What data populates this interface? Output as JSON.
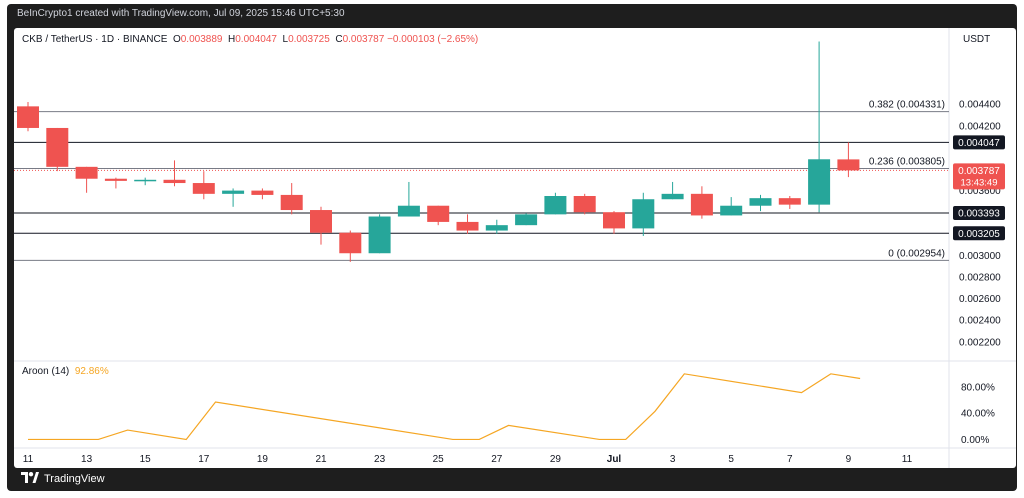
{
  "header": {
    "attribution": "BeInCrypto1 created with TradingView.com, Jul 09, 2025 15:46 UTC+5:30"
  },
  "footer": {
    "brand": "TradingView"
  },
  "colors": {
    "up": "#26a69a",
    "down": "#ef5350",
    "aroon": "#f5a623",
    "fib_line": "#787b86",
    "price_line": "#ef5350",
    "label_dark": "#131722"
  },
  "chart_data": [
    {
      "type": "candlestick",
      "title": "CKB / TetherUS · 1D · BINANCE",
      "ohlc_legend": {
        "symbol": "CKB / TetherUS · 1D · BINANCE",
        "o_label": "O",
        "o": "0.003889",
        "h_label": "H",
        "h": "0.004047",
        "l_label": "L",
        "l": "0.003725",
        "c_label": "C",
        "c": "0.003787",
        "change": "−0.000103 (−2.65%)"
      },
      "currency": "USDT",
      "ylim": [
        0.00205,
        0.00505
      ],
      "y_ticks": [
        "0.004400",
        "0.004200",
        "0.003600",
        "0.003000",
        "0.002800",
        "0.002600",
        "0.002400",
        "0.002200"
      ],
      "x_ticks": [
        "11",
        "13",
        "15",
        "17",
        "19",
        "21",
        "23",
        "25",
        "27",
        "29",
        "Jul",
        "3",
        "5",
        "7",
        "9",
        "11"
      ],
      "candles": [
        {
          "o": 0.00438,
          "h": 0.00442,
          "l": 0.00415,
          "c": 0.00418
        },
        {
          "o": 0.00418,
          "h": 0.00418,
          "l": 0.00378,
          "c": 0.00382
        },
        {
          "o": 0.00382,
          "h": 0.00382,
          "l": 0.00358,
          "c": 0.00371
        },
        {
          "o": 0.00371,
          "h": 0.00372,
          "l": 0.00362,
          "c": 0.00369
        },
        {
          "o": 0.00369,
          "h": 0.00372,
          "l": 0.00365,
          "c": 0.0037
        },
        {
          "o": 0.0037,
          "h": 0.00388,
          "l": 0.00364,
          "c": 0.00367
        },
        {
          "o": 0.00367,
          "h": 0.00378,
          "l": 0.00352,
          "c": 0.00357
        },
        {
          "o": 0.00357,
          "h": 0.00362,
          "l": 0.00345,
          "c": 0.0036
        },
        {
          "o": 0.0036,
          "h": 0.00362,
          "l": 0.00352,
          "c": 0.00356
        },
        {
          "o": 0.00356,
          "h": 0.00367,
          "l": 0.00338,
          "c": 0.00342
        },
        {
          "o": 0.00342,
          "h": 0.00345,
          "l": 0.0031,
          "c": 0.00321
        },
        {
          "o": 0.00321,
          "h": 0.00323,
          "l": 0.00294,
          "c": 0.00302
        },
        {
          "o": 0.00302,
          "h": 0.00338,
          "l": 0.00302,
          "c": 0.00336
        },
        {
          "o": 0.00336,
          "h": 0.00368,
          "l": 0.00336,
          "c": 0.00346
        },
        {
          "o": 0.00346,
          "h": 0.00346,
          "l": 0.00328,
          "c": 0.00331
        },
        {
          "o": 0.00331,
          "h": 0.00338,
          "l": 0.0032,
          "c": 0.00323
        },
        {
          "o": 0.00323,
          "h": 0.00333,
          "l": 0.0032,
          "c": 0.00328
        },
        {
          "o": 0.00328,
          "h": 0.00339,
          "l": 0.00328,
          "c": 0.00338
        },
        {
          "o": 0.00338,
          "h": 0.00358,
          "l": 0.00338,
          "c": 0.00355
        },
        {
          "o": 0.00355,
          "h": 0.00357,
          "l": 0.00338,
          "c": 0.0034
        },
        {
          "o": 0.0034,
          "h": 0.00341,
          "l": 0.0032,
          "c": 0.00325
        },
        {
          "o": 0.00325,
          "h": 0.00358,
          "l": 0.00318,
          "c": 0.00352
        },
        {
          "o": 0.00352,
          "h": 0.00368,
          "l": 0.00352,
          "c": 0.00357
        },
        {
          "o": 0.00357,
          "h": 0.00364,
          "l": 0.00334,
          "c": 0.00337
        },
        {
          "o": 0.00337,
          "h": 0.00354,
          "l": 0.00337,
          "c": 0.00346
        },
        {
          "o": 0.00346,
          "h": 0.00356,
          "l": 0.00341,
          "c": 0.00353
        },
        {
          "o": 0.00353,
          "h": 0.00355,
          "l": 0.00343,
          "c": 0.00347
        },
        {
          "o": 0.00347,
          "h": 0.00498,
          "l": 0.0034,
          "c": 0.00389
        },
        {
          "o": 0.003889,
          "h": 0.004047,
          "l": 0.003725,
          "c": 0.003787
        }
      ],
      "fib_levels": [
        {
          "value": 0.004331,
          "label": "0.382 (0.004331)"
        },
        {
          "value": 0.003805,
          "label": "0.236 (0.003805)"
        },
        {
          "value": 0.002954,
          "label": "0 (0.002954)"
        }
      ],
      "horizontal_levels": [
        {
          "value": 0.004047,
          "label": "0.004047"
        },
        {
          "value": 0.003393,
          "label": "0.003393"
        },
        {
          "value": 0.003205,
          "label": "0.003205"
        }
      ],
      "current_price": {
        "value": 0.003787,
        "label": "0.003787",
        "countdown": "13:43:49"
      }
    },
    {
      "type": "line",
      "title": "Aroon (14)",
      "current_value_label": "92.86%",
      "ylim": [
        -10,
        115
      ],
      "y_ticks": [
        "80.00%",
        "40.00%",
        "0.00%"
      ],
      "y_tick_values": [
        80,
        40,
        0
      ],
      "points": [
        {
          "x": 0,
          "y": 0
        },
        {
          "x": 2.4,
          "y": 0
        },
        {
          "x": 3.4,
          "y": 14.3
        },
        {
          "x": 5.4,
          "y": 0
        },
        {
          "x": 6.4,
          "y": 57
        },
        {
          "x": 14.5,
          "y": 0
        },
        {
          "x": 15.4,
          "y": 0
        },
        {
          "x": 16.4,
          "y": 21.4
        },
        {
          "x": 19.5,
          "y": 0
        },
        {
          "x": 20.4,
          "y": 0
        },
        {
          "x": 21.4,
          "y": 42.9
        },
        {
          "x": 22.4,
          "y": 100
        },
        {
          "x": 26.4,
          "y": 71.4
        },
        {
          "x": 27.4,
          "y": 100
        },
        {
          "x": 28.4,
          "y": 92.86
        }
      ]
    }
  ]
}
